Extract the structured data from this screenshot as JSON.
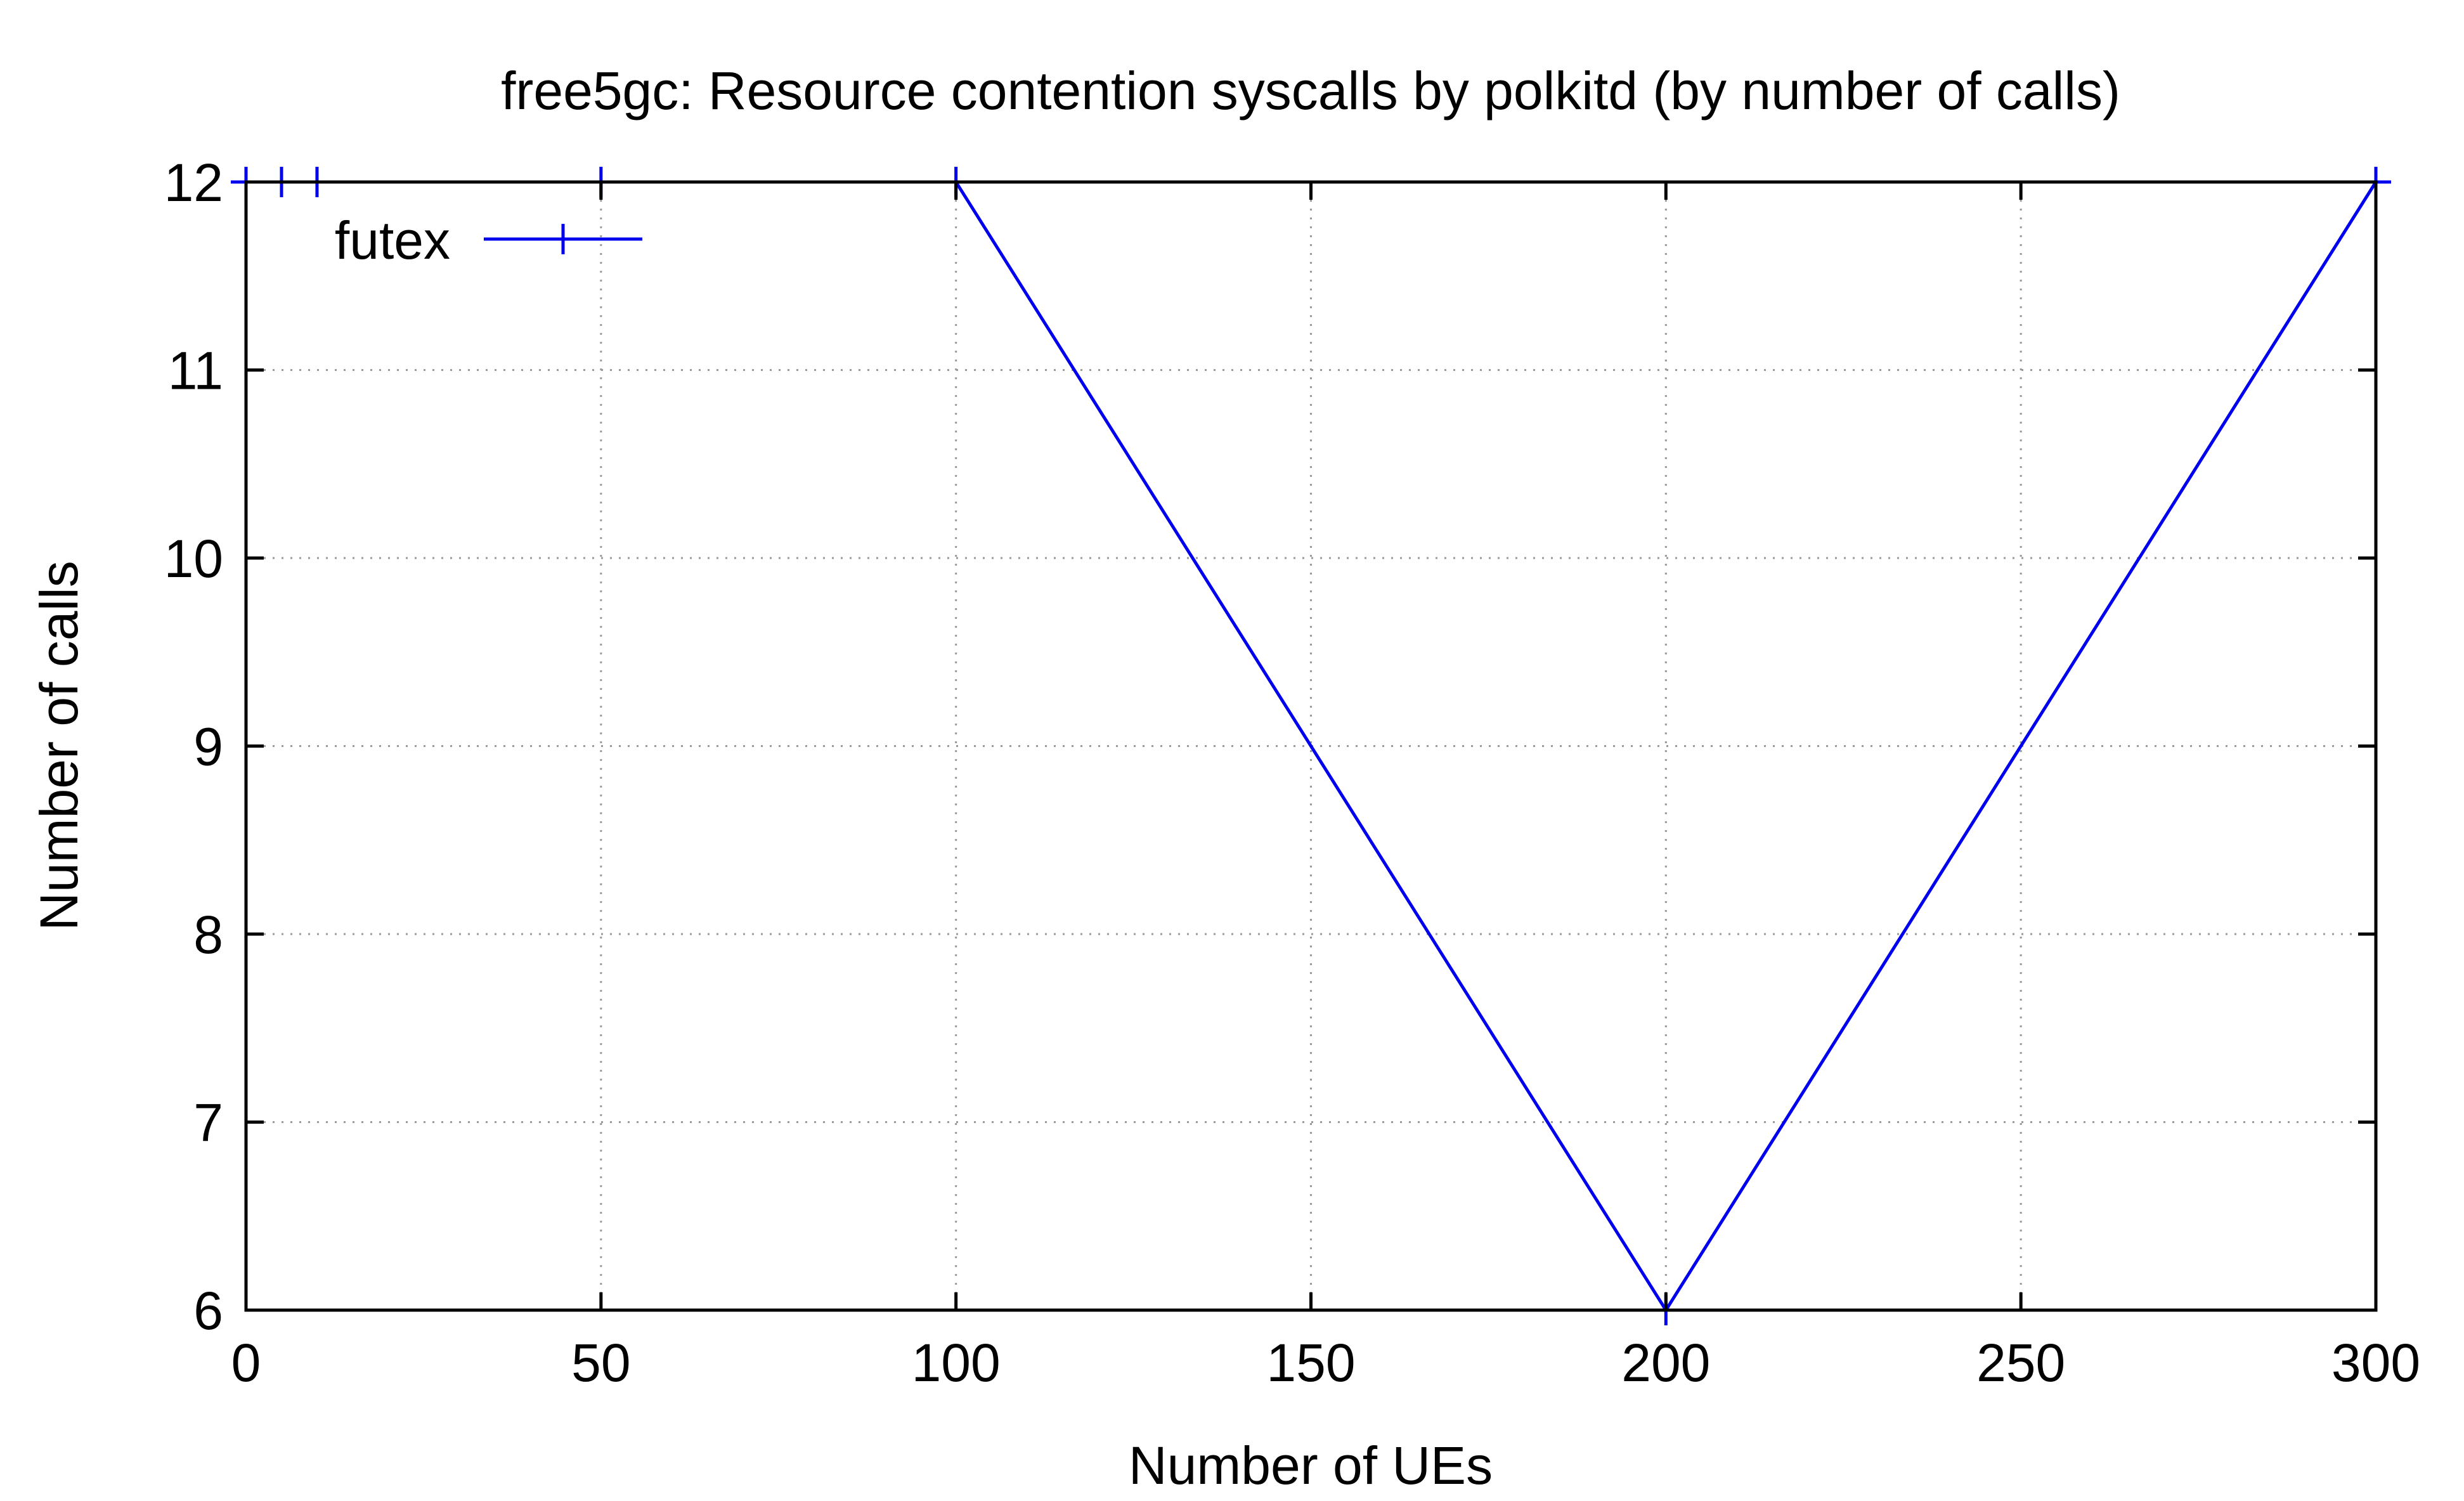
{
  "chart_data": {
    "type": "line",
    "title": "free5gc: Resource contention syscalls by polkitd (by number of calls)",
    "xlabel": "Number of UEs",
    "ylabel": "Number of calls",
    "xlim": [
      0,
      300
    ],
    "ylim": [
      6,
      12
    ],
    "x_ticks": [
      0,
      50,
      100,
      150,
      200,
      250,
      300
    ],
    "y_ticks": [
      6,
      7,
      8,
      9,
      10,
      11,
      12
    ],
    "x_tick_labels": [
      "0",
      "50",
      "100",
      "150",
      "200",
      "250",
      "300"
    ],
    "y_tick_labels": [
      "6",
      "7",
      "8",
      "9",
      "10",
      "11",
      "12"
    ],
    "grid": true,
    "legend_position": "top-left",
    "series": [
      {
        "name": "futex",
        "color": "#0000ee",
        "marker": "plus",
        "x": [
          0,
          5,
          10,
          50,
          100,
          200,
          300
        ],
        "y": [
          12,
          12,
          12,
          12,
          12,
          6,
          12
        ]
      }
    ]
  }
}
